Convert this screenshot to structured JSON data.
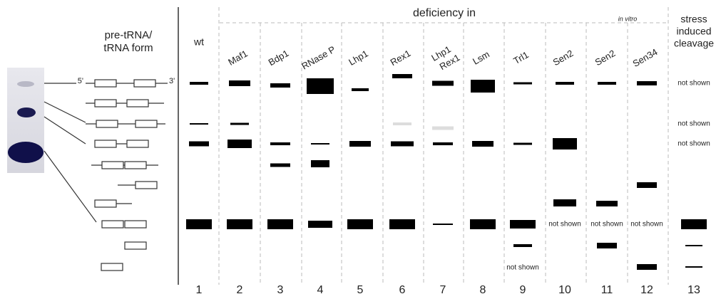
{
  "header": {
    "form_title": [
      "pre-tRNA/",
      "tRNA form"
    ],
    "deficiency": "deficiency in",
    "in_vitro": "in vitro",
    "stress": [
      "stress",
      "induced",
      "cleavage"
    ]
  },
  "ends": {
    "five": "5'",
    "three": "3'"
  },
  "columns": [
    [
      "wt"
    ],
    [
      "Maf1"
    ],
    [
      "Bdp1"
    ],
    [
      "RNase P"
    ],
    [
      "Lhp1"
    ],
    [
      "Rex1"
    ],
    [
      "Lhp1",
      "Rex1"
    ],
    [
      "Lsm"
    ],
    [
      "Trl1"
    ],
    [
      "Sen2"
    ],
    [
      "Sen2"
    ],
    [
      "Sen34"
    ]
  ],
  "lanes": [
    1,
    2,
    3,
    4,
    5,
    6,
    7,
    8,
    9,
    10,
    11,
    12,
    13
  ],
  "annotations": [
    "not shown",
    "not shown",
    "not shown",
    "not shown",
    "not shown",
    "not shown",
    "not shown"
  ]
}
